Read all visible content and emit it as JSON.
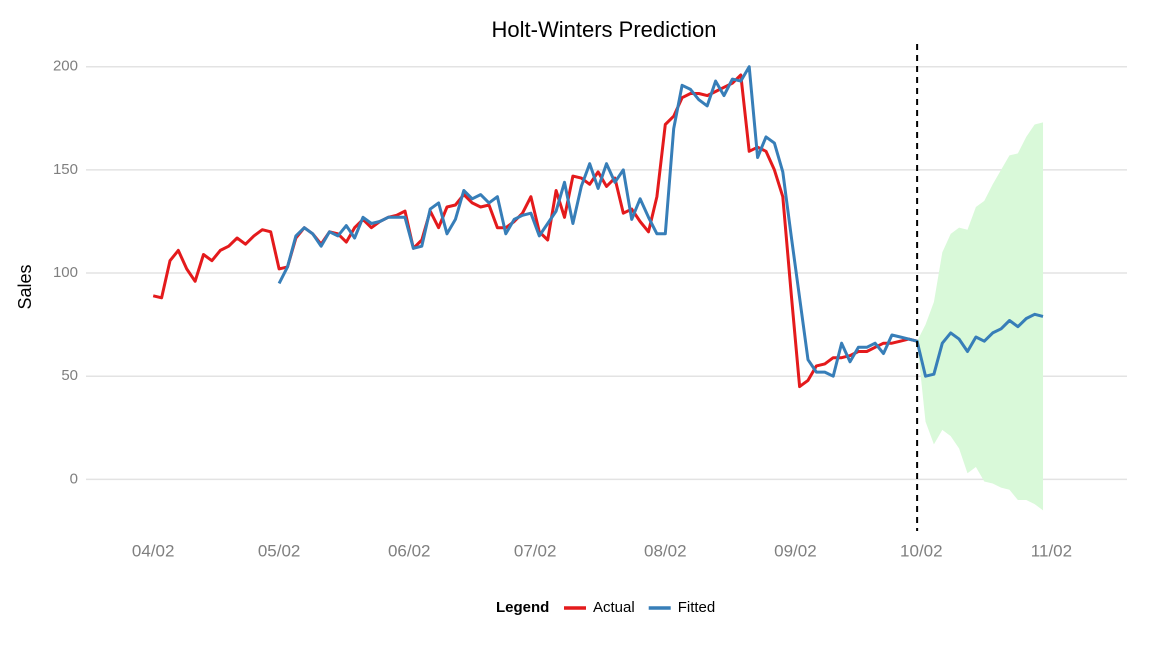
{
  "chart_data": {
    "type": "line",
    "title": "Holt-Winters Prediction",
    "y_label": "Sales",
    "xlim": [
      -16,
      232
    ],
    "ylim": [
      -25,
      211
    ],
    "xticks": [
      {
        "value": 0,
        "label": "04/02"
      },
      {
        "value": 30,
        "label": "05/02"
      },
      {
        "value": 61,
        "label": "06/02"
      },
      {
        "value": 91,
        "label": "07/02"
      },
      {
        "value": 122,
        "label": "08/02"
      },
      {
        "value": 153,
        "label": "09/02"
      },
      {
        "value": 183,
        "label": "10/02"
      },
      {
        "value": 214,
        "label": "11/02"
      }
    ],
    "yticks": [
      0,
      50,
      100,
      150,
      200
    ],
    "grid": true,
    "legend_title": "Legend",
    "legend": "bottom",
    "vline": 182,
    "series": [
      {
        "name": "Actual",
        "color": "#e41a1c",
        "x": [
          0,
          2,
          4,
          6,
          8,
          10,
          12,
          14,
          16,
          18,
          20,
          22,
          24,
          26,
          28,
          30,
          32,
          34,
          36,
          38,
          40,
          42,
          44,
          46,
          48,
          50,
          52,
          54,
          56,
          58,
          60,
          62,
          64,
          66,
          68,
          70,
          72,
          74,
          76,
          78,
          80,
          82,
          84,
          86,
          88,
          90,
          92,
          94,
          96,
          98,
          100,
          102,
          104,
          106,
          108,
          110,
          112,
          114,
          116,
          118,
          120,
          122,
          124,
          126,
          128,
          130,
          132,
          134,
          136,
          138,
          140,
          142,
          144,
          146,
          148,
          150,
          152,
          154,
          156,
          158,
          160,
          162,
          164,
          166,
          168,
          170,
          172,
          174,
          176,
          178,
          180,
          182
        ],
        "values": [
          89,
          88,
          106,
          111,
          102,
          96,
          109,
          106,
          111,
          113,
          117,
          114,
          118,
          121,
          120,
          102,
          103,
          117,
          122,
          119,
          114,
          120,
          119,
          115,
          122,
          126,
          122,
          125,
          127,
          128,
          130,
          112,
          116,
          130,
          122,
          132,
          133,
          138,
          134,
          132,
          133,
          122,
          122,
          125,
          129,
          137,
          120,
          116,
          140,
          127,
          147,
          146,
          143,
          149,
          142,
          146,
          129,
          131,
          125,
          120,
          137,
          172,
          176,
          185,
          187,
          187,
          186,
          188,
          190,
          192,
          196,
          159,
          161,
          159,
          150,
          137,
          90,
          45,
          48,
          55,
          56,
          59,
          59,
          60,
          62,
          62,
          64,
          66,
          66,
          67,
          68,
          67
        ]
      },
      {
        "name": "Fitted",
        "color": "#377eb8",
        "x": [
          30,
          32,
          34,
          36,
          38,
          40,
          42,
          44,
          46,
          48,
          50,
          52,
          54,
          56,
          58,
          60,
          62,
          64,
          66,
          68,
          70,
          72,
          74,
          76,
          78,
          80,
          82,
          84,
          86,
          88,
          90,
          92,
          94,
          96,
          98,
          100,
          102,
          104,
          106,
          108,
          110,
          112,
          114,
          116,
          118,
          120,
          122,
          124,
          126,
          128,
          130,
          132,
          134,
          136,
          138,
          140,
          142,
          144,
          146,
          148,
          150,
          152,
          154,
          156,
          158,
          160,
          162,
          164,
          166,
          168,
          170,
          172,
          174,
          176,
          178,
          180,
          182,
          184,
          186,
          188,
          190,
          192,
          194,
          196,
          198,
          200,
          202,
          204,
          206,
          208,
          210,
          212
        ],
        "values": [
          95,
          103,
          118,
          122,
          119,
          113,
          120,
          118,
          123,
          117,
          127,
          124,
          125,
          127,
          127,
          127,
          112,
          113,
          131,
          134,
          119,
          126,
          140,
          136,
          138,
          134,
          137,
          119,
          126,
          128,
          129,
          118,
          124,
          130,
          144,
          124,
          142,
          153,
          141,
          153,
          144,
          150,
          126,
          136,
          127,
          119,
          119,
          170,
          191,
          189,
          184,
          181,
          193,
          186,
          194,
          193,
          200,
          156,
          166,
          163,
          149,
          118,
          88,
          58,
          52,
          52,
          50,
          66,
          57,
          64,
          64,
          66,
          61,
          70,
          69,
          68,
          67,
          50,
          51,
          66,
          71,
          68,
          62,
          69,
          67,
          71,
          73,
          77,
          74,
          78,
          80,
          79
        ]
      }
    ],
    "band": {
      "color": "#d9f9d9",
      "x": [
        182,
        184,
        186,
        188,
        190,
        192,
        194,
        196,
        198,
        200,
        202,
        204,
        206,
        208,
        210,
        212
      ],
      "upper": [
        67,
        75,
        86,
        110,
        119,
        122,
        121,
        132,
        135,
        143,
        150,
        157,
        158,
        166,
        172,
        173
      ],
      "lower": [
        67,
        28,
        17,
        24,
        21,
        15,
        3,
        6,
        -1,
        -2,
        -4,
        -5,
        -10,
        -10,
        -12,
        -15
      ]
    }
  }
}
